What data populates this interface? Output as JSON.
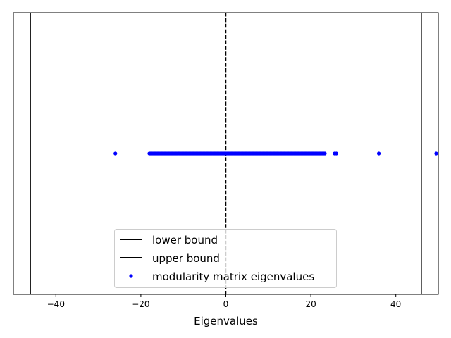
{
  "chart_data": {
    "type": "scatter",
    "xlabel": "Eigenvalues",
    "ylabel": "",
    "title": "",
    "xlim": [
      -50,
      50
    ],
    "ylim": [
      -1,
      1
    ],
    "xticks": [
      -40,
      -20,
      0,
      20,
      40
    ],
    "xtick_labels": [
      "−40",
      "−20",
      "0",
      "20",
      "40"
    ],
    "yticks_visible": false,
    "grid": false,
    "legend_position": "lower center",
    "reference_lines": [
      {
        "name": "lower bound",
        "x": -46,
        "style": "solid",
        "color": "#000000",
        "in_legend": true
      },
      {
        "name": "upper bound",
        "x": 46,
        "style": "solid",
        "color": "#000000",
        "in_legend": true
      },
      {
        "name": "",
        "x": 0,
        "style": "dashed",
        "color": "#000000",
        "in_legend": false
      }
    ],
    "series": [
      {
        "name": "modularity matrix eigenvalues",
        "color": "#0000ff",
        "y": 0,
        "dense_range": [
          -18,
          23.3
        ],
        "dense_count": 200,
        "x": [
          -26,
          25.6,
          26.0,
          36.0,
          49.5
        ]
      }
    ]
  }
}
